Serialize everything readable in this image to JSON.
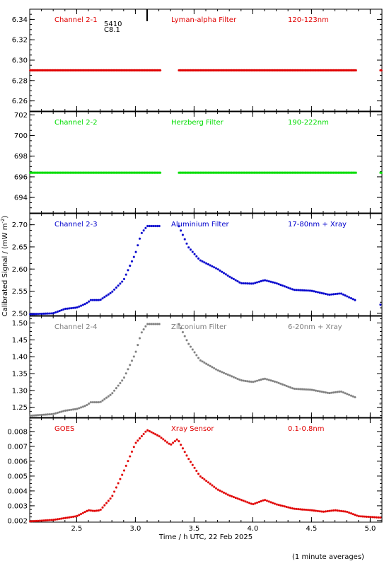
{
  "chart_data": {
    "type": "scatter",
    "xlabel": "Time / h UTC, 22 Feb 2025",
    "ylabel": "Calibrated Signal / (mW m",
    "ylabel_sup": "-2",
    "ylabel_close": ")",
    "xlim": [
      2.1,
      5.1
    ],
    "xticks": [
      "2.5",
      "3.0",
      "3.5",
      "4.0",
      "4.5",
      "5.0"
    ],
    "xtick_values": [
      2.5,
      3.0,
      3.5,
      4.0,
      4.5,
      5.0
    ],
    "footnote": "(1 minute averages)",
    "flare_marker": {
      "x": 3.1,
      "labels": [
        "5410",
        "C8.1"
      ]
    },
    "panels": [
      {
        "id": "ch21",
        "channel": "Channel 2-1",
        "filter": "Lyman-alpha Filter",
        "band": "120-123nm",
        "color": "#e00000",
        "ylim": [
          6.25,
          6.35
        ],
        "yticks": [
          "6.26",
          "6.28",
          "6.30",
          "6.32",
          "6.34"
        ],
        "ytick_values": [
          6.26,
          6.28,
          6.3,
          6.32,
          6.34
        ],
        "gaps": [
          [
            3.22,
            3.37
          ],
          [
            4.88,
            5.08
          ]
        ],
        "points": [
          [
            2.1,
            6.29
          ],
          [
            5.1,
            6.29
          ]
        ]
      },
      {
        "id": "ch22",
        "channel": "Channel 2-2",
        "filter": "Herzberg Filter",
        "band": "190-222nm",
        "color": "#00dd00",
        "ylim": [
          692.5,
          702.3
        ],
        "yticks": [
          "694",
          "696",
          "698",
          "700",
          "702"
        ],
        "ytick_values": [
          694,
          696,
          698,
          700,
          702
        ],
        "gaps": [
          [
            3.22,
            3.37
          ],
          [
            4.88,
            5.08
          ]
        ],
        "points": [
          [
            2.1,
            696.4
          ],
          [
            5.1,
            696.4
          ]
        ]
      },
      {
        "id": "ch23",
        "channel": "Channel 2-3",
        "filter": "Aluminium Filter",
        "band": "17-80nm + Xray",
        "color": "#0000cc",
        "ylim": [
          2.495,
          2.725
        ],
        "yticks": [
          "2.50",
          "2.55",
          "2.60",
          "2.65",
          "2.70"
        ],
        "ytick_values": [
          2.5,
          2.55,
          2.6,
          2.65,
          2.7
        ],
        "gaps": [
          [
            3.22,
            3.37
          ],
          [
            4.88,
            5.08
          ]
        ],
        "points": [
          [
            2.1,
            2.498
          ],
          [
            2.3,
            2.5
          ],
          [
            2.4,
            2.51
          ],
          [
            2.5,
            2.513
          ],
          [
            2.58,
            2.522
          ],
          [
            2.62,
            2.53
          ],
          [
            2.7,
            2.53
          ],
          [
            2.8,
            2.548
          ],
          [
            2.9,
            2.575
          ],
          [
            3.0,
            2.635
          ],
          [
            3.05,
            2.68
          ],
          [
            3.1,
            2.697
          ],
          [
            3.2,
            2.697
          ],
          [
            3.37,
            2.697
          ],
          [
            3.45,
            2.65
          ],
          [
            3.55,
            2.62
          ],
          [
            3.7,
            2.6
          ],
          [
            3.8,
            2.583
          ],
          [
            3.9,
            2.568
          ],
          [
            4.0,
            2.567
          ],
          [
            4.1,
            2.575
          ],
          [
            4.2,
            2.568
          ],
          [
            4.35,
            2.553
          ],
          [
            4.5,
            2.551
          ],
          [
            4.65,
            2.542
          ],
          [
            4.75,
            2.545
          ],
          [
            4.87,
            2.53
          ],
          [
            5.1,
            2.519
          ]
        ]
      },
      {
        "id": "ch24",
        "channel": "Channel 2-4",
        "filter": "Zirconium Filter",
        "band": "6-20nm + Xray",
        "color": "#7f7f7f",
        "ylim": [
          1.22,
          1.52
        ],
        "yticks": [
          "1.25",
          "1.30",
          "1.35",
          "1.40",
          "1.45",
          "1.50"
        ],
        "ytick_values": [
          1.25,
          1.3,
          1.35,
          1.4,
          1.45,
          1.5
        ],
        "gaps": [
          [
            3.22,
            3.37
          ],
          [
            4.88,
            5.08
          ]
        ],
        "points": [
          [
            2.1,
            1.225
          ],
          [
            2.3,
            1.23
          ],
          [
            2.4,
            1.24
          ],
          [
            2.5,
            1.245
          ],
          [
            2.58,
            1.255
          ],
          [
            2.62,
            1.265
          ],
          [
            2.7,
            1.265
          ],
          [
            2.8,
            1.29
          ],
          [
            2.9,
            1.335
          ],
          [
            3.0,
            1.41
          ],
          [
            3.05,
            1.47
          ],
          [
            3.1,
            1.497
          ],
          [
            3.2,
            1.497
          ],
          [
            3.37,
            1.497
          ],
          [
            3.45,
            1.44
          ],
          [
            3.55,
            1.39
          ],
          [
            3.7,
            1.36
          ],
          [
            3.8,
            1.345
          ],
          [
            3.9,
            1.33
          ],
          [
            4.0,
            1.325
          ],
          [
            4.1,
            1.335
          ],
          [
            4.2,
            1.325
          ],
          [
            4.35,
            1.305
          ],
          [
            4.5,
            1.302
          ],
          [
            4.65,
            1.292
          ],
          [
            4.75,
            1.297
          ],
          [
            4.87,
            1.28
          ],
          [
            5.1,
            1.26
          ]
        ]
      },
      {
        "id": "goes",
        "channel": "GOES",
        "filter": "Xray Sensor",
        "band": "0.1-0.8nm",
        "color": "#e00000",
        "ylim": [
          0.0019,
          0.0089
        ],
        "yticks": [
          "0.002",
          "0.003",
          "0.004",
          "0.005",
          "0.006",
          "0.007",
          "0.008"
        ],
        "ytick_values": [
          0.002,
          0.003,
          0.004,
          0.005,
          0.006,
          0.007,
          0.008
        ],
        "gaps": [],
        "points": [
          [
            2.1,
            0.00195
          ],
          [
            2.3,
            0.00205
          ],
          [
            2.5,
            0.0023
          ],
          [
            2.6,
            0.0027
          ],
          [
            2.65,
            0.00265
          ],
          [
            2.7,
            0.0027
          ],
          [
            2.8,
            0.0036
          ],
          [
            2.9,
            0.0053
          ],
          [
            3.0,
            0.0072
          ],
          [
            3.1,
            0.0081
          ],
          [
            3.2,
            0.0077
          ],
          [
            3.3,
            0.0071
          ],
          [
            3.36,
            0.0075
          ],
          [
            3.45,
            0.0062
          ],
          [
            3.55,
            0.005
          ],
          [
            3.7,
            0.0041
          ],
          [
            3.8,
            0.0037
          ],
          [
            3.9,
            0.0034
          ],
          [
            4.0,
            0.0031
          ],
          [
            4.1,
            0.0034
          ],
          [
            4.2,
            0.0031
          ],
          [
            4.35,
            0.0028
          ],
          [
            4.5,
            0.0027
          ],
          [
            4.6,
            0.0026
          ],
          [
            4.7,
            0.0027
          ],
          [
            4.8,
            0.0026
          ],
          [
            4.9,
            0.0023
          ],
          [
            5.1,
            0.0022
          ]
        ]
      }
    ]
  }
}
